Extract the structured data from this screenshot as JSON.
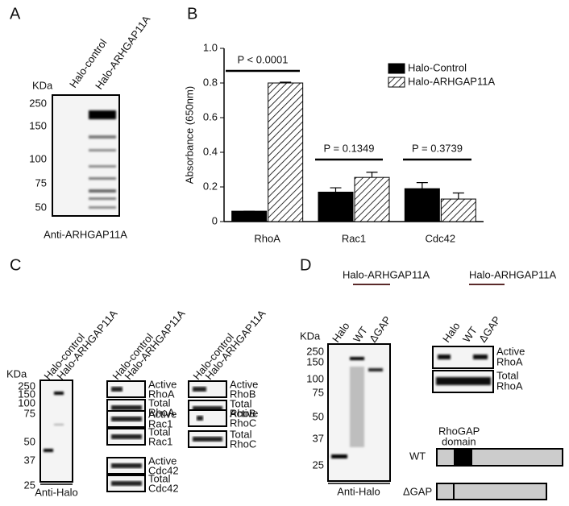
{
  "panel_a": {
    "label": "A",
    "lanes": [
      "Halo-control",
      "Halo-ARHGAP11A"
    ],
    "size_unit": "KDa",
    "markers": [
      "250",
      "150",
      "100",
      "75",
      "50"
    ],
    "antibody": "Anti-ARHGAP11A"
  },
  "panel_b": {
    "label": "B"
  },
  "chart_data": {
    "type": "bar",
    "ylabel": "Absorbance (650nm)",
    "categories": [
      "RhoA",
      "Rac1",
      "Cdc42"
    ],
    "series": [
      {
        "name": "Halo-Control",
        "color": "#000000",
        "values": [
          0.06,
          0.17,
          0.19
        ],
        "errors": [
          0,
          0.025,
          0.035
        ]
      },
      {
        "name": "Halo-ARHGAP11A",
        "color": "#ffffff",
        "hatch": true,
        "values": [
          0.8,
          0.255,
          0.13
        ],
        "errors": [
          0.005,
          0.03,
          0.035
        ]
      }
    ],
    "ylim": [
      0,
      1
    ],
    "yticks": [
      0,
      0.2,
      0.4,
      0.6,
      0.8,
      {
        "value": 1,
        "label": "1.0"
      }
    ],
    "annotations": [
      "P < 0.0001",
      "P = 0.1349",
      "P = 0.3739"
    ],
    "legend": "top-right"
  },
  "panel_c": {
    "label": "C",
    "lanes": [
      "Halo-control",
      "Halo-ARHGAP11A"
    ],
    "size_unit": "KDa",
    "markers": [
      "250",
      "150",
      "100",
      "75",
      "50",
      "37",
      "25"
    ],
    "antibody": "Anti-Halo",
    "pulldown_lanes": [
      [
        "Halo-control",
        "Halo-ARHGAP11A"
      ],
      [
        "Halo-control",
        "Halo-ARHGAP11A"
      ]
    ],
    "blots": [
      [
        "Active",
        "RhoA"
      ],
      [
        "Total",
        "RhoA"
      ],
      [
        "Active",
        "Rac1"
      ],
      [
        "Total",
        "Rac1"
      ],
      [
        "Active",
        "Cdc42"
      ],
      [
        "Total",
        "Cdc42"
      ],
      [
        "Active",
        "RhoB"
      ],
      [
        "Total",
        "RhoB"
      ],
      [
        "Active",
        "RhoC"
      ],
      [
        "Total",
        "RhoC"
      ]
    ]
  },
  "panel_d": {
    "label": "D",
    "constructs": [
      "Halo-ARHGAP11A",
      "Halo-ARHGAP11A"
    ],
    "lanes": [
      "Halo",
      "WT",
      "ΔGAP"
    ],
    "size_unit": "KDa",
    "markers": [
      "250",
      "150",
      "100",
      "75",
      "50",
      "37",
      "25"
    ],
    "antibody": "Anti-Halo",
    "blots": [
      [
        "Active",
        "RhoA"
      ],
      [
        "Total",
        "RhoA"
      ]
    ],
    "domain": [
      "RhoGAP",
      "domain"
    ],
    "diagram_constructs": [
      "WT",
      "ΔGAP"
    ]
  }
}
